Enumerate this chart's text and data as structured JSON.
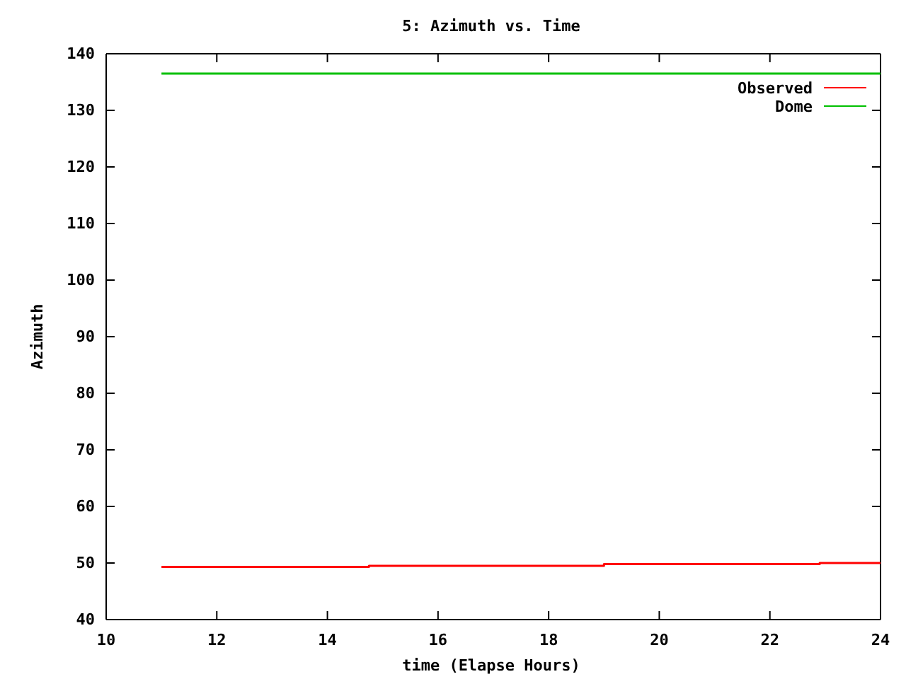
{
  "chart_data": {
    "type": "line",
    "title": "5: Azimuth vs. Time",
    "xlabel": "time (Elapse Hours)",
    "ylabel": "Azimuth",
    "xlim": [
      10,
      24
    ],
    "xticks": [
      10,
      12,
      14,
      16,
      18,
      20,
      22,
      24
    ],
    "ylim": [
      40,
      140
    ],
    "yticks": [
      40,
      50,
      60,
      70,
      80,
      90,
      100,
      110,
      120,
      130,
      140
    ],
    "grid": false,
    "legend": "top right",
    "series": [
      {
        "name": "Observed",
        "color": "#ff0000",
        "type": "step",
        "x": [
          11,
          14.75,
          19,
          22.9,
          24
        ],
        "values": [
          49.3,
          49.5,
          49.8,
          50,
          50
        ]
      },
      {
        "name": "Dome",
        "color": "#00c000",
        "x": [
          11,
          24
        ],
        "values": [
          136.5,
          136.5
        ]
      }
    ]
  }
}
